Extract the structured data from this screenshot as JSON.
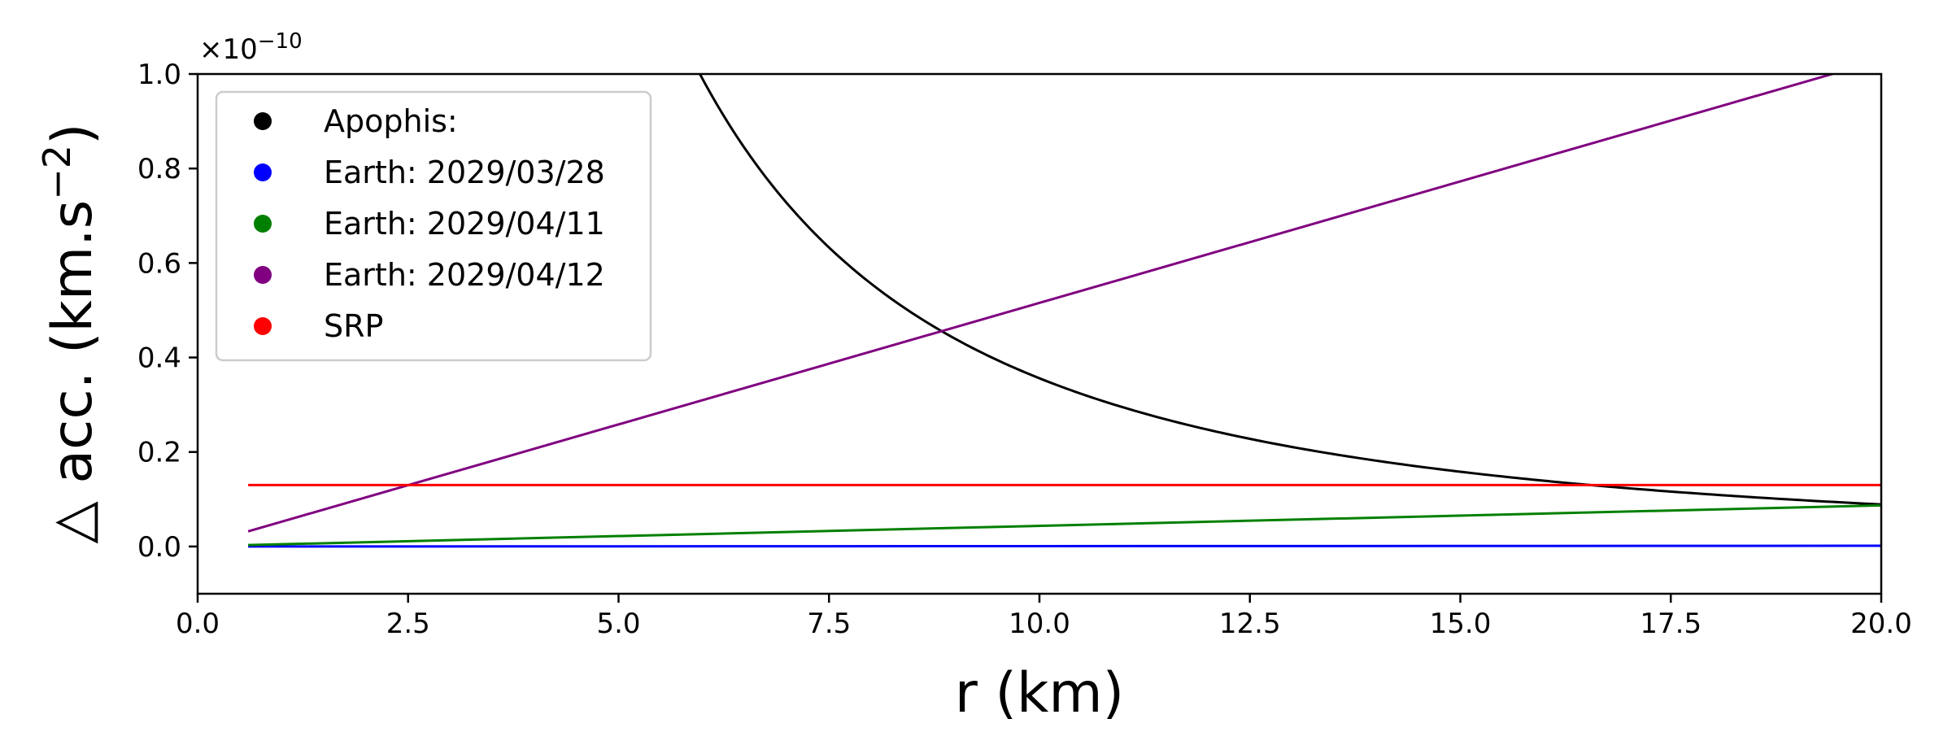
{
  "chart_data": {
    "type": "line",
    "xlabel": "r (km)",
    "ylabel_main": "△ acc. (km.s",
    "ylabel_exp": "−2",
    "ylabel_close": ")",
    "y_offset_base": "×10",
    "y_offset_exp": "−10",
    "xlim": [
      0,
      20
    ],
    "ylim": [
      -0.1,
      1.0
    ],
    "y_scale_factor": 1e-10,
    "grid": false,
    "legend_position": "upper-left",
    "x_ticks": [
      0,
      2.5,
      5,
      7.5,
      10,
      12.5,
      15,
      17.5,
      20
    ],
    "x_tick_labels": [
      "0.0",
      "2.5",
      "5.0",
      "7.5",
      "10.0",
      "12.5",
      "15.0",
      "17.5",
      "20.0"
    ],
    "y_ticks": [
      0,
      0.2,
      0.4,
      0.6,
      0.8,
      1.0
    ],
    "y_tick_labels": [
      "0.0",
      "0.2",
      "0.4",
      "0.6",
      "0.8",
      "1.0"
    ],
    "series": [
      {
        "name": "Apophis:",
        "color": "#000000",
        "kind": "inverse_square",
        "k": 35.6,
        "x_start": 0.6,
        "x_end": 20
      },
      {
        "name": "Earth: 2029/03/28",
        "color": "#0000ff",
        "kind": "linear",
        "x": [
          0.6,
          20
        ],
        "y": [
          0.0,
          0.0015
        ]
      },
      {
        "name": "Earth: 2029/04/11",
        "color": "#008000",
        "kind": "linear",
        "x": [
          0.6,
          20
        ],
        "y": [
          0.003,
          0.087
        ]
      },
      {
        "name": "Earth: 2029/04/12",
        "color": "#800080",
        "kind": "linear",
        "x": [
          0.6,
          20
        ],
        "y": [
          0.032,
          1.03
        ]
      },
      {
        "name": "SRP",
        "color": "#ff0000",
        "kind": "linear",
        "x": [
          0.6,
          20
        ],
        "y": [
          0.13,
          0.13
        ]
      }
    ]
  }
}
